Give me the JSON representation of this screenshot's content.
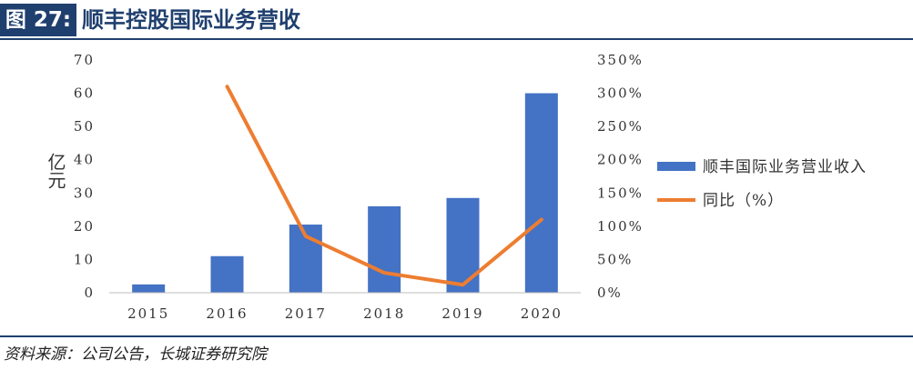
{
  "header": {
    "figure_label": "图 27:",
    "title": "顺丰控股国际业务营收"
  },
  "source": "资料来源：公司公告，长城证券研究院",
  "chart_data": {
    "type": "bar",
    "title": "顺丰控股国际业务营收",
    "categories": [
      "2015",
      "2016",
      "2017",
      "2018",
      "2019",
      "2020"
    ],
    "ylabel": "亿元",
    "y_ticks": [
      "0",
      "10",
      "20",
      "30",
      "40",
      "50",
      "60",
      "70"
    ],
    "y2_ticks": [
      "0%",
      "50%",
      "100%",
      "150%",
      "200%",
      "250%",
      "300%",
      "350%"
    ],
    "ylim": [
      0,
      70
    ],
    "y2lim": [
      0,
      350
    ],
    "series": [
      {
        "name": "顺丰国际业务营业收入",
        "type": "bar",
        "axis": "left",
        "color": "#4472c4",
        "values": [
          2.5,
          11,
          20.5,
          26,
          28.5,
          60
        ]
      },
      {
        "name": "同比（%）",
        "type": "line",
        "axis": "right",
        "color": "#ed7d31",
        "values": [
          null,
          310,
          85,
          30,
          12,
          110
        ]
      }
    ],
    "grid": false,
    "legend_position": "right"
  }
}
